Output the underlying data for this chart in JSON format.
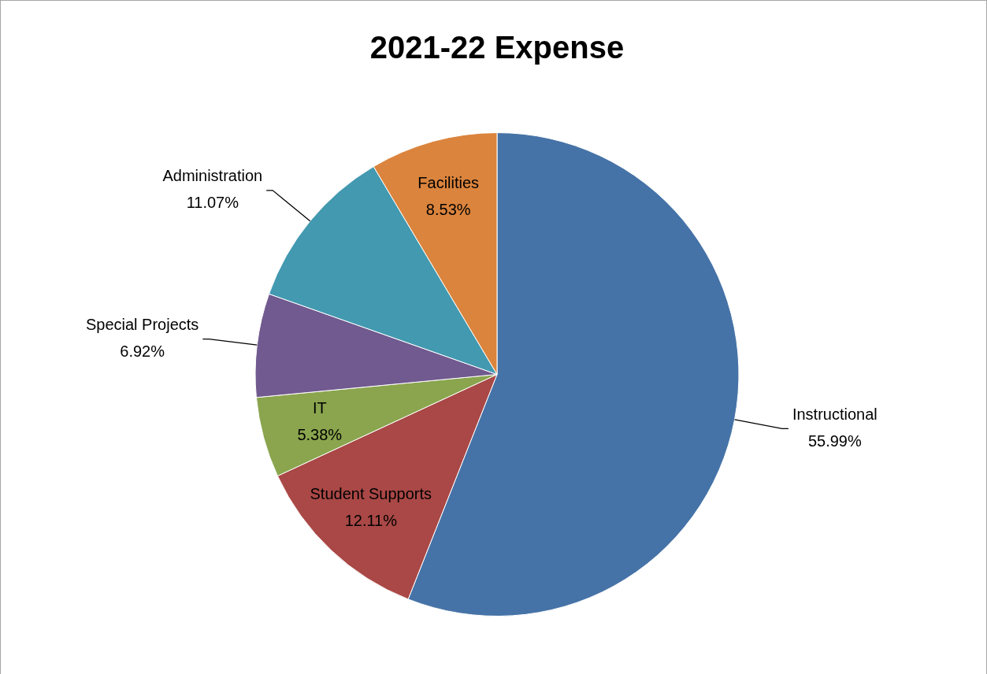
{
  "chart_data": {
    "type": "pie",
    "title": "2021-22 Expense",
    "categories": [
      "Instructional",
      "Student Supports",
      "IT",
      "Special Projects",
      "Administration",
      "Facilities"
    ],
    "values": [
      55.99,
      12.11,
      5.38,
      6.92,
      11.07,
      8.53
    ],
    "colors": [
      "#4673a7",
      "#a94846",
      "#8aa54e",
      "#715a8f",
      "#4299b0",
      "#db843d"
    ],
    "value_labels": [
      "55.99%",
      "12.11%",
      "5.38%",
      "6.92%",
      "11.07%",
      "8.53%"
    ],
    "legend": false
  }
}
